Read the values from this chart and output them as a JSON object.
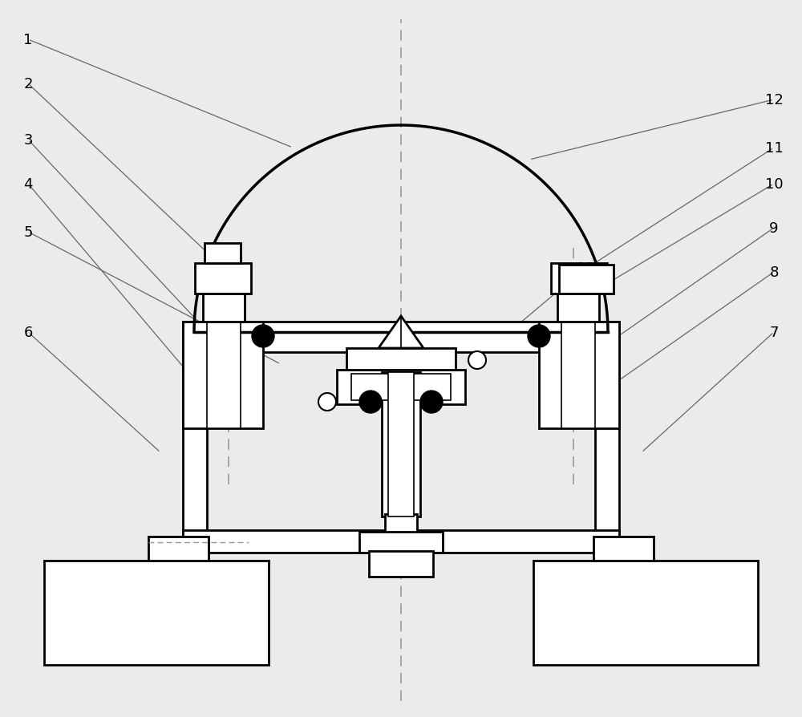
{
  "bg_color": "#ebebeb",
  "line_color": "#000000",
  "dashed_color": "#999999",
  "label_color": "#000000",
  "fig_w": 10.0,
  "fig_h": 8.95
}
